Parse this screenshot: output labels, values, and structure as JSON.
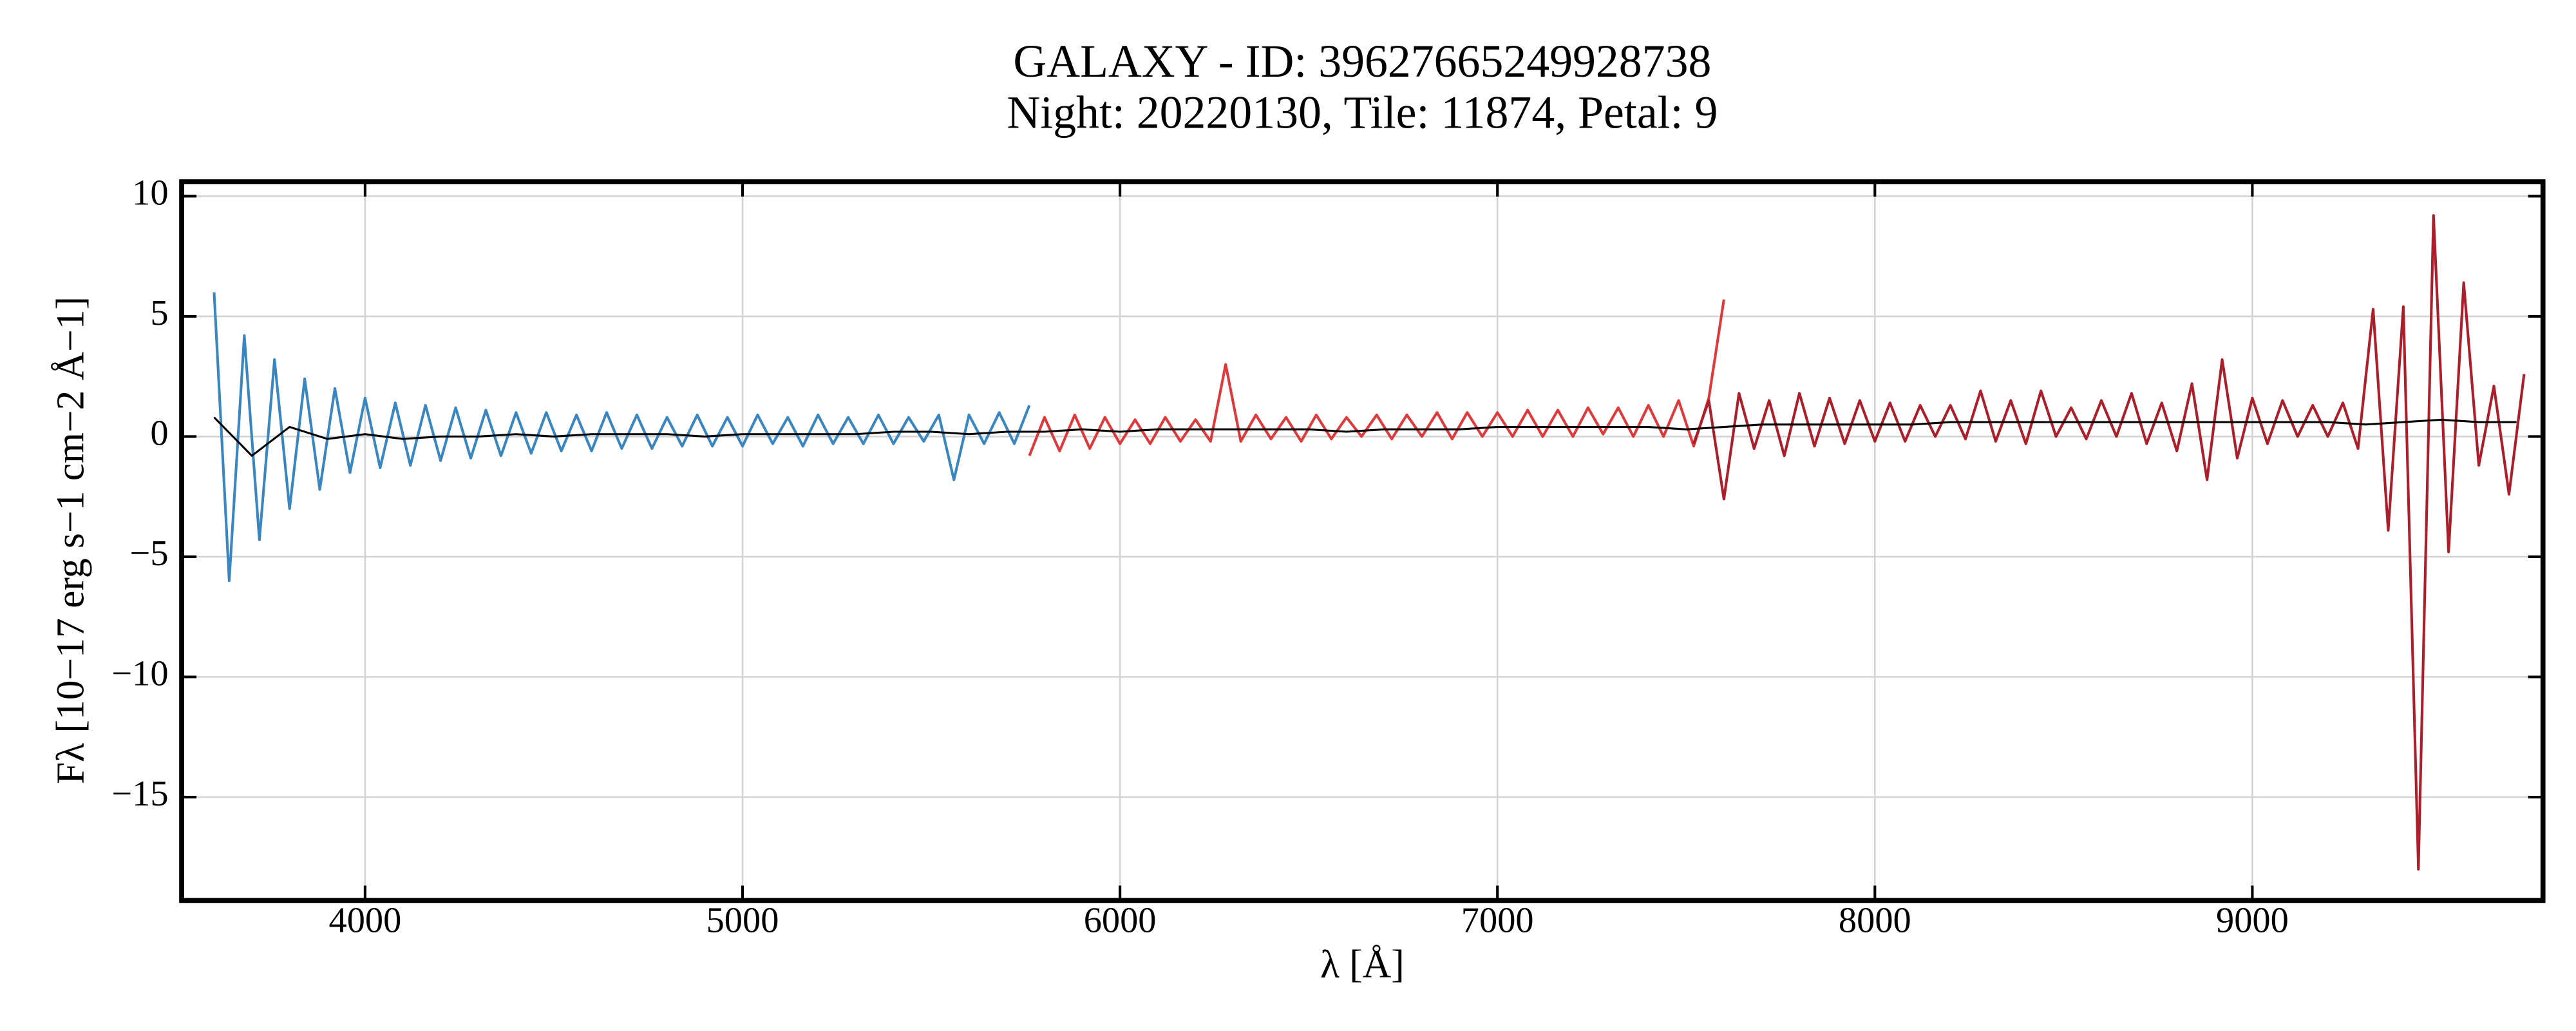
{
  "chart_data": {
    "type": "line",
    "title": "GALAXY - ID: 39627665249928738",
    "subtitle": "Night: 20220130, Tile: 11874, Petal: 9",
    "xlabel": "λ [Å]",
    "ylabel": "Fλ [10−17 erg s−1 cm−2 Å−1]",
    "xlim": [
      3514,
      9770
    ],
    "ylim": [
      -19.3,
      10.6
    ],
    "xticks": [
      4000,
      5000,
      6000,
      7000,
      8000,
      9000
    ],
    "yticks": [
      {
        "value": -15,
        "label": "−15"
      },
      {
        "value": -10,
        "label": "−10"
      },
      {
        "value": -5,
        "label": "−5"
      },
      0,
      5,
      10
    ],
    "grid": true,
    "series": [
      {
        "color": "#3a86c0",
        "x": [
          3600,
          3640,
          3680,
          3720,
          3760,
          3800,
          3840,
          3880,
          3920,
          3960,
          4000,
          4040,
          4080,
          4120,
          4160,
          4200,
          4240,
          4280,
          4320,
          4360,
          4400,
          4440,
          4480,
          4520,
          4560,
          4600,
          4640,
          4680,
          4720,
          4760,
          4800,
          4840,
          4880,
          4920,
          4960,
          5000,
          5040,
          5080,
          5120,
          5160,
          5200,
          5240,
          5280,
          5320,
          5360,
          5400,
          5440,
          5480,
          5520,
          5560,
          5600,
          5640,
          5680,
          5720,
          5760
        ],
        "values": [
          6.0,
          -6.0,
          4.2,
          -4.3,
          3.2,
          -3.0,
          2.4,
          -2.2,
          2.0,
          -1.5,
          1.6,
          -1.3,
          1.4,
          -1.2,
          1.3,
          -1.0,
          1.2,
          -0.9,
          1.1,
          -0.8,
          1.0,
          -0.7,
          1.0,
          -0.6,
          0.9,
          -0.6,
          1.0,
          -0.5,
          0.9,
          -0.5,
          0.8,
          -0.4,
          0.9,
          -0.4,
          0.8,
          -0.4,
          0.9,
          -0.3,
          0.8,
          -0.4,
          0.9,
          -0.3,
          0.8,
          -0.3,
          0.9,
          -0.3,
          0.8,
          -0.2,
          0.9,
          -1.8,
          0.9,
          -0.3,
          1.0,
          -0.3,
          1.3
        ]
      },
      {
        "color": "#de3a3c",
        "x": [
          5760,
          5800,
          5840,
          5880,
          5920,
          5960,
          6000,
          6040,
          6080,
          6120,
          6160,
          6200,
          6240,
          6280,
          6320,
          6360,
          6400,
          6440,
          6480,
          6520,
          6560,
          6600,
          6640,
          6680,
          6720,
          6760,
          6800,
          6840,
          6880,
          6920,
          6960,
          7000,
          7040,
          7080,
          7120,
          7160,
          7200,
          7240,
          7280,
          7320,
          7360,
          7400,
          7440,
          7480,
          7520,
          7560,
          7600
        ],
        "values": [
          -0.8,
          0.8,
          -0.6,
          0.9,
          -0.5,
          0.8,
          -0.3,
          0.7,
          -0.3,
          0.8,
          -0.2,
          0.7,
          -0.2,
          3.0,
          -0.2,
          0.9,
          -0.1,
          0.8,
          -0.2,
          0.9,
          -0.1,
          0.8,
          0.0,
          0.9,
          -0.1,
          0.9,
          0.0,
          1.0,
          -0.1,
          1.0,
          0.0,
          1.0,
          0.0,
          1.1,
          0.0,
          1.1,
          0.0,
          1.2,
          0.1,
          1.2,
          0.0,
          1.3,
          0.0,
          1.5,
          -0.4,
          1.6,
          5.7
        ]
      },
      {
        "color": "#ab1e2a",
        "x": [
          7520,
          7560,
          7600,
          7640,
          7680,
          7720,
          7760,
          7800,
          7840,
          7880,
          7920,
          7960,
          8000,
          8040,
          8080,
          8120,
          8160,
          8200,
          8240,
          8280,
          8320,
          8360,
          8400,
          8440,
          8480,
          8520,
          8560,
          8600,
          8640,
          8680,
          8720,
          8760,
          8800,
          8840,
          8880,
          8920,
          8960,
          9000,
          9040,
          9080,
          9120,
          9160,
          9200,
          9240,
          9280,
          9320,
          9360,
          9400,
          9440,
          9480,
          9520,
          9560,
          9600,
          9640,
          9680,
          9720
        ],
        "values": [
          -0.3,
          1.5,
          -2.6,
          1.8,
          -0.5,
          1.5,
          -0.8,
          1.8,
          -0.4,
          1.6,
          -0.3,
          1.5,
          -0.2,
          1.4,
          -0.2,
          1.3,
          0.0,
          1.3,
          -0.1,
          1.9,
          -0.2,
          1.5,
          -0.3,
          1.9,
          0.0,
          1.2,
          -0.1,
          1.5,
          0.0,
          1.8,
          -0.3,
          1.4,
          -0.6,
          2.2,
          -1.8,
          3.2,
          -0.9,
          1.6,
          -0.3,
          1.5,
          0.0,
          1.3,
          0.0,
          1.4,
          -0.5,
          5.3,
          -3.9,
          5.4,
          -18.0,
          9.2,
          -4.8,
          6.4,
          -1.2,
          2.1,
          -2.4,
          2.6
        ]
      },
      {
        "color": "#000000",
        "x": [
          3600,
          3700,
          3800,
          3900,
          4000,
          4100,
          4200,
          4300,
          4400,
          4500,
          4600,
          4700,
          4800,
          4900,
          5000,
          5100,
          5200,
          5300,
          5400,
          5500,
          5600,
          5700,
          5800,
          5900,
          6000,
          6100,
          6200,
          6300,
          6400,
          6500,
          6600,
          6700,
          6800,
          6900,
          7000,
          7100,
          7200,
          7300,
          7400,
          7500,
          7600,
          7700,
          7800,
          7900,
          8000,
          8100,
          8200,
          8300,
          8400,
          8500,
          8600,
          8700,
          8800,
          8900,
          9000,
          9100,
          9200,
          9300,
          9400,
          9500,
          9600,
          9700
        ],
        "values": [
          0.8,
          -0.8,
          0.4,
          -0.1,
          0.1,
          -0.1,
          0.0,
          0.0,
          0.1,
          0.0,
          0.1,
          0.1,
          0.1,
          0.0,
          0.1,
          0.1,
          0.1,
          0.1,
          0.2,
          0.2,
          0.1,
          0.2,
          0.2,
          0.3,
          0.2,
          0.3,
          0.3,
          0.3,
          0.3,
          0.3,
          0.2,
          0.3,
          0.3,
          0.3,
          0.4,
          0.4,
          0.4,
          0.4,
          0.4,
          0.3,
          0.4,
          0.5,
          0.5,
          0.5,
          0.5,
          0.5,
          0.6,
          0.6,
          0.6,
          0.6,
          0.6,
          0.6,
          0.6,
          0.6,
          0.6,
          0.6,
          0.6,
          0.5,
          0.6,
          0.7,
          0.6,
          0.6
        ]
      }
    ]
  }
}
